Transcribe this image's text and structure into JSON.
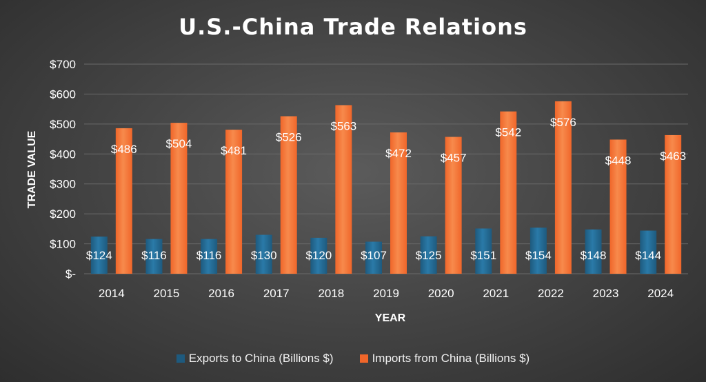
{
  "colors": {
    "exports": "#1e5a7e",
    "exports_light": "#2a7aa8",
    "imports": "#f0662a",
    "imports_light": "#f78a4c",
    "grid": "#6a6a6a",
    "text": "#ffffff"
  },
  "chart_data": {
    "type": "bar",
    "title": "U.S.-China Trade Relations",
    "xlabel": "YEAR",
    "ylabel": "TRADE VALUE",
    "categories": [
      "2014",
      "2015",
      "2016",
      "2017",
      "2018",
      "2019",
      "2020",
      "2021",
      "2022",
      "2023",
      "2024"
    ],
    "series": [
      {
        "name": "Exports to China (Billions $)",
        "values": [
          124,
          116,
          116,
          130,
          120,
          107,
          125,
          151,
          154,
          148,
          144
        ],
        "labels": [
          "$124",
          "$116",
          "$116",
          "$130",
          "$120",
          "$107",
          "$125",
          "$151",
          "$154",
          "$148",
          "$144"
        ]
      },
      {
        "name": "Imports from China (Billions $)",
        "values": [
          486,
          504,
          481,
          526,
          563,
          472,
          457,
          542,
          576,
          448,
          463
        ],
        "labels": [
          "$486",
          "$504",
          "$481",
          "$526",
          "$563",
          "$472",
          "$457",
          "$542",
          "$576",
          "$448",
          "$463"
        ]
      }
    ],
    "ylim": [
      0,
      700
    ],
    "yticks": [
      0,
      100,
      200,
      300,
      400,
      500,
      600,
      700
    ],
    "ytick_labels": [
      "$-",
      "$100",
      "$200",
      "$300",
      "$400",
      "$500",
      "$600",
      "$700"
    ],
    "grid": true,
    "legend_position": "bottom"
  }
}
